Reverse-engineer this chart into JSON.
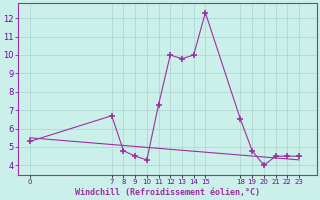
{
  "x": [
    0,
    7,
    8,
    9,
    10,
    11,
    12,
    13,
    14,
    15,
    18,
    19,
    20,
    21,
    22,
    23
  ],
  "y": [
    5.3,
    6.7,
    4.8,
    4.5,
    4.3,
    7.3,
    10.0,
    9.8,
    10.0,
    12.3,
    6.5,
    4.8,
    4.0,
    4.5,
    4.5,
    4.5
  ],
  "trend_x": [
    0,
    23
  ],
  "trend_y": [
    5.5,
    4.3
  ],
  "line_color": "#9B30A0",
  "bg_color": "#CBF0EA",
  "grid_color": "#B0D8D4",
  "xlabel": "Windchill (Refroidissement éolien,°C)",
  "xlabel_color": "#9B30A0",
  "yticks": [
    4,
    5,
    6,
    7,
    8,
    9,
    10,
    11,
    12
  ],
  "ylim": [
    3.5,
    12.8
  ],
  "xlim": [
    -1,
    24.5
  ],
  "marker": "+",
  "markersize": 5
}
